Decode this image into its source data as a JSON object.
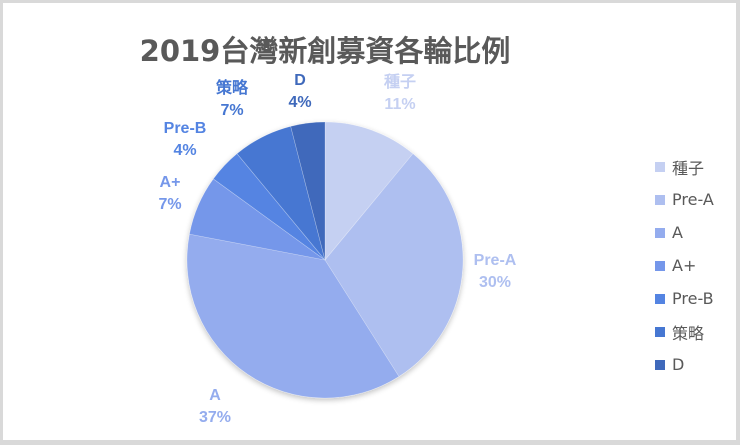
{
  "chart_data": {
    "type": "pie",
    "title": "2019台灣新創募資各輪比例",
    "categories": [
      "種子",
      "Pre-A",
      "A",
      "A+",
      "Pre-B",
      "策略",
      "D"
    ],
    "values": [
      11,
      30,
      37,
      7,
      4,
      7,
      4
    ],
    "unit": "%",
    "colors": [
      "#c5d0f2",
      "#aebff0",
      "#94acee",
      "#7597ea",
      "#5484e2",
      "#4677d2",
      "#3f69bb"
    ],
    "start_angle": "12 o'clock",
    "direction": "clockwise",
    "legend_position": "right",
    "data_labels": [
      {
        "name": "種子",
        "value": "11%"
      },
      {
        "name": "Pre-A",
        "value": "30%"
      },
      {
        "name": "A",
        "value": "37%"
      },
      {
        "name": "A+",
        "value": "7%"
      },
      {
        "name": "Pre-B",
        "value": "4%"
      },
      {
        "name": "策略",
        "value": "7%"
      },
      {
        "name": "D",
        "value": "4%"
      }
    ]
  },
  "legend": {
    "items": [
      "種子",
      "Pre-A",
      "A",
      "A+",
      "Pre-B",
      "策略",
      "D"
    ]
  }
}
